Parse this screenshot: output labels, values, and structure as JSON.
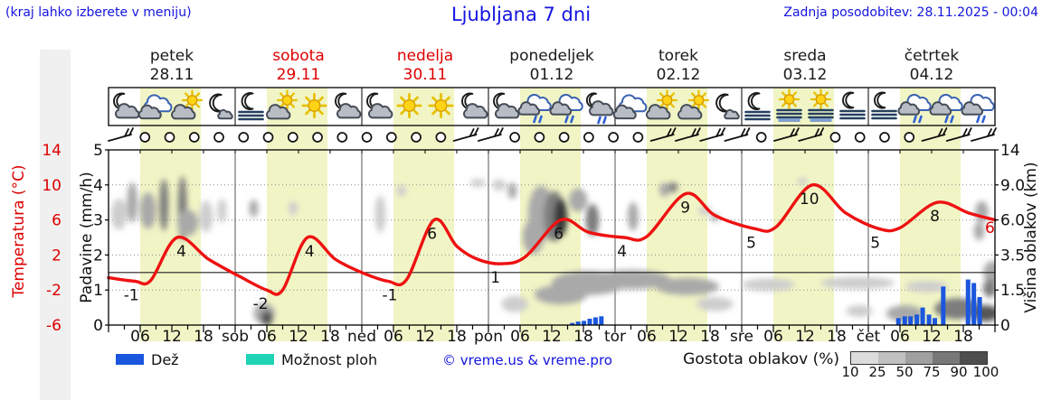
{
  "header": {
    "hint": "(kraj lahko izberete v meniju)",
    "title": "Ljubljana 7 dni",
    "updated": "Zadnja posodobitev: 28.11.2025 - 00:04"
  },
  "days": [
    {
      "name": "petek",
      "date": "28.11",
      "color": "#1a1a1a",
      "icons": [
        "moon-cloud",
        "cloud",
        "sun-cloud",
        "moon"
      ]
    },
    {
      "name": "sobota",
      "date": "29.11",
      "color": "#dd0000",
      "icons": [
        "fog-moon",
        "sun-cloud",
        "sun",
        "moon-cloud"
      ]
    },
    {
      "name": "nedelja",
      "date": "30.11",
      "color": "#dd0000",
      "icons": [
        "moon-cloud",
        "sun",
        "sun",
        "moon-cloud"
      ]
    },
    {
      "name": "ponedeljek",
      "date": "01.12",
      "color": "#1a1a1a",
      "icons": [
        "moon-cloud",
        "rain-cloud",
        "rain-cloud",
        "moon-rain"
      ]
    },
    {
      "name": "torek",
      "date": "02.12",
      "color": "#1a1a1a",
      "icons": [
        "cloud",
        "sun-cloud",
        "sun-cloud",
        "moon"
      ]
    },
    {
      "name": "sreda",
      "date": "03.12",
      "color": "#1a1a1a",
      "icons": [
        "fog-moon",
        "fog-sun",
        "fog-sun",
        "moon-fog"
      ]
    },
    {
      "name": "četrtek",
      "date": "04.12",
      "color": "#1a1a1a",
      "icons": [
        "moon-fog",
        "rain-cloud",
        "rain-cloud",
        "rain-cloud"
      ]
    }
  ],
  "axes": {
    "temp_label": "Temperatura (°C)",
    "precip_label": "Padavine (mm/h)",
    "height_label": "Višina oblakov (km)"
  },
  "legend": {
    "rain_label": "Dež",
    "showers_label": "Možnost ploh",
    "copyright": "© vreme.us & vreme.pro",
    "density_label": "Gostota oblakov (%)",
    "density_ticks": [
      "10",
      "25",
      "50",
      "75",
      "90",
      "100"
    ],
    "density_colors": [
      "#dcdcdc",
      "#c0c0c0",
      "#a0a0a0",
      "#787878",
      "#4e4e4e"
    ]
  },
  "colors": {
    "accent_blue": "#1414e0",
    "red": "#dd0000",
    "curve_red": "#ee1111",
    "rain_bar_blue": "#1b57de",
    "showers_cyan": "#1fd3b5",
    "day_band": "#f1f5c5",
    "side_stripe": "#f0f0f0"
  },
  "chart_data": {
    "type": "line",
    "title": "Ljubljana 7 dni",
    "x_axis": {
      "unit": "hour from 28.11 00:00",
      "hours_total": 168,
      "hour_tick_labels": [
        "06",
        "12",
        "18"
      ],
      "day_boundary_labels": [
        "sob",
        "ned",
        "pon",
        "tor",
        "sre",
        "čet"
      ],
      "daylight_band_hours": [
        6,
        17.5
      ]
    },
    "y_temperature": {
      "label": "Temperatura (°C)",
      "ticks": [
        14,
        10,
        6,
        2,
        -2,
        -6
      ],
      "range": [
        -6,
        14
      ],
      "zero_line": 0
    },
    "y_precipitation": {
      "label": "Padavine (mm/h)",
      "ticks": [
        5,
        4,
        3,
        2,
        1,
        0
      ],
      "range": [
        0,
        5
      ]
    },
    "y_cloud_height": {
      "label": "Višina oblakov (km)",
      "ticks": [
        "14",
        "9.0",
        "6.0",
        "3.5",
        "1.5",
        "0"
      ],
      "levels_km": [
        0,
        1.5,
        3.5,
        6,
        9,
        14
      ]
    },
    "temperature_curve": [
      [
        0,
        -0.6
      ],
      [
        5,
        -1
      ],
      [
        8,
        -0.9
      ],
      [
        13,
        4
      ],
      [
        19,
        1.5
      ],
      [
        25,
        -0.5
      ],
      [
        30,
        -2
      ],
      [
        33,
        -2
      ],
      [
        37.7,
        4
      ],
      [
        43,
        1.5
      ],
      [
        48,
        0
      ],
      [
        53,
        -1
      ],
      [
        56.5,
        -0.8
      ],
      [
        61.7,
        6
      ],
      [
        66,
        3
      ],
      [
        70,
        1.5
      ],
      [
        74.5,
        1
      ],
      [
        79,
        1.8
      ],
      [
        85.7,
        6
      ],
      [
        91,
        4.6
      ],
      [
        97.7,
        4
      ],
      [
        102,
        4.1
      ],
      [
        109.4,
        9
      ],
      [
        115,
        6.5
      ],
      [
        122.5,
        5
      ],
      [
        126.5,
        5.2
      ],
      [
        133.4,
        10
      ],
      [
        139.7,
        6.8
      ],
      [
        146,
        5
      ],
      [
        150,
        5.1
      ],
      [
        157,
        8
      ],
      [
        163,
        6.8
      ],
      [
        168,
        6
      ]
    ],
    "temperature_point_labels": [
      {
        "h": 5,
        "v": -1
      },
      {
        "h": 14.5,
        "v": 4
      },
      {
        "h": 29.5,
        "v": -2
      },
      {
        "h": 38.8,
        "v": 4
      },
      {
        "h": 54,
        "v": -1
      },
      {
        "h": 62,
        "v": 6
      },
      {
        "h": 74,
        "v": 1
      },
      {
        "h": 86,
        "v": 6
      },
      {
        "h": 98,
        "v": 4
      },
      {
        "h": 110,
        "v": 9
      },
      {
        "h": 122.5,
        "v": 5
      },
      {
        "h": 133.5,
        "v": 10
      },
      {
        "h": 146,
        "v": 5
      },
      {
        "h": 157.3,
        "v": 8
      }
    ],
    "end_temperature_label": "6",
    "precipitation_bars": [
      [
        87.9,
        0.06
      ],
      [
        89,
        0.1
      ],
      [
        90.1,
        0.12
      ],
      [
        91.2,
        0.18
      ],
      [
        92.3,
        0.22
      ],
      [
        93.4,
        0.25
      ],
      [
        149.7,
        0.2
      ],
      [
        150.9,
        0.25
      ],
      [
        152,
        0.25
      ],
      [
        153.2,
        0.3
      ],
      [
        154.3,
        0.5
      ],
      [
        155.5,
        0.3
      ],
      [
        156.6,
        0.2
      ],
      [
        158.2,
        1.1
      ],
      [
        162.9,
        1.3
      ],
      [
        164,
        1.2
      ],
      [
        165.1,
        0.8
      ]
    ],
    "cloud_blobs": [
      [
        2,
        6.5,
        3,
        2.5,
        25
      ],
      [
        4.5,
        7.5,
        2,
        3.5,
        50
      ],
      [
        7.5,
        6.8,
        3,
        3,
        50
      ],
      [
        10.5,
        7.3,
        1.5,
        4.5,
        75
      ],
      [
        14,
        7,
        1.5,
        5.5,
        75
      ],
      [
        15,
        5.8,
        4,
        2,
        50
      ],
      [
        18.5,
        6.3,
        2.5,
        2.5,
        25
      ],
      [
        21.5,
        6.8,
        1.5,
        2,
        25
      ],
      [
        27.5,
        7,
        1.5,
        1.5,
        50
      ],
      [
        29.5,
        0.5,
        4,
        0.9,
        50
      ],
      [
        30,
        0.3,
        2.2,
        0.7,
        90
      ],
      [
        35,
        7,
        1,
        1.2,
        25
      ],
      [
        51.5,
        6.5,
        2,
        3,
        25
      ],
      [
        55.5,
        8.5,
        1.8,
        1,
        25
      ],
      [
        70,
        9.3,
        3,
        1,
        25
      ],
      [
        74,
        9,
        2.5,
        1.2,
        25
      ],
      [
        76.5,
        8.5,
        1.7,
        1.5,
        50
      ],
      [
        80.5,
        4.8,
        4,
        2.5,
        50
      ],
      [
        82,
        6.5,
        5,
        4.5,
        50
      ],
      [
        84.5,
        6.3,
        4,
        4,
        75
      ],
      [
        85.7,
        6.2,
        2.5,
        3,
        100
      ],
      [
        89,
        7.7,
        3.5,
        2,
        50
      ],
      [
        91.7,
        6,
        2.5,
        2.5,
        75
      ],
      [
        99.4,
        6.3,
        2,
        2.3,
        50
      ],
      [
        105.4,
        8.6,
        2,
        1.3,
        50
      ],
      [
        107,
        8.8,
        1.4,
        1,
        75
      ],
      [
        113,
        6.8,
        2.5,
        0.8,
        25
      ],
      [
        114.9,
        6.2,
        1.7,
        0.6,
        50
      ],
      [
        77,
        0.9,
        5,
        0.7,
        25
      ],
      [
        85.7,
        1.3,
        10,
        0.9,
        50
      ],
      [
        91,
        1.9,
        14,
        1.3,
        50
      ],
      [
        96,
        2.1,
        7,
        0.9,
        75
      ],
      [
        99,
        2.1,
        15,
        1.1,
        50
      ],
      [
        109.7,
        1.7,
        12,
        0.9,
        50
      ],
      [
        114.9,
        0.9,
        7,
        0.6,
        25
      ],
      [
        125,
        1.8,
        10,
        0.7,
        25
      ],
      [
        142,
        1.9,
        14,
        0.7,
        25
      ],
      [
        155,
        1.7,
        8,
        0.6,
        25
      ],
      [
        142.3,
        0.6,
        5,
        0.5,
        25
      ],
      [
        150.9,
        0.5,
        7,
        0.7,
        50
      ],
      [
        161,
        0.7,
        9,
        0.9,
        75
      ],
      [
        166.3,
        0.5,
        5,
        0.7,
        90
      ],
      [
        131.5,
        9.5,
        2,
        0.8,
        25
      ],
      [
        165.5,
        6.7,
        2.5,
        1.8,
        50
      ],
      [
        165,
        5.2,
        2,
        1.3,
        50
      ],
      [
        167.5,
        2.5,
        3.4,
        1.3,
        50
      ],
      [
        167,
        1.6,
        2.5,
        0.9,
        75
      ]
    ],
    "cloud_density_palette": {
      "10": "#e2e2e2",
      "25": "#cdcdcd",
      "50": "#a9a9a9",
      "75": "#7d7d7d",
      "90": "#555555",
      "100": "#383838"
    },
    "wind_row": {
      "slots": 36,
      "barb_slots": [
        0,
        14,
        15,
        22,
        23,
        24,
        25,
        27,
        28,
        33,
        34,
        35
      ]
    }
  }
}
